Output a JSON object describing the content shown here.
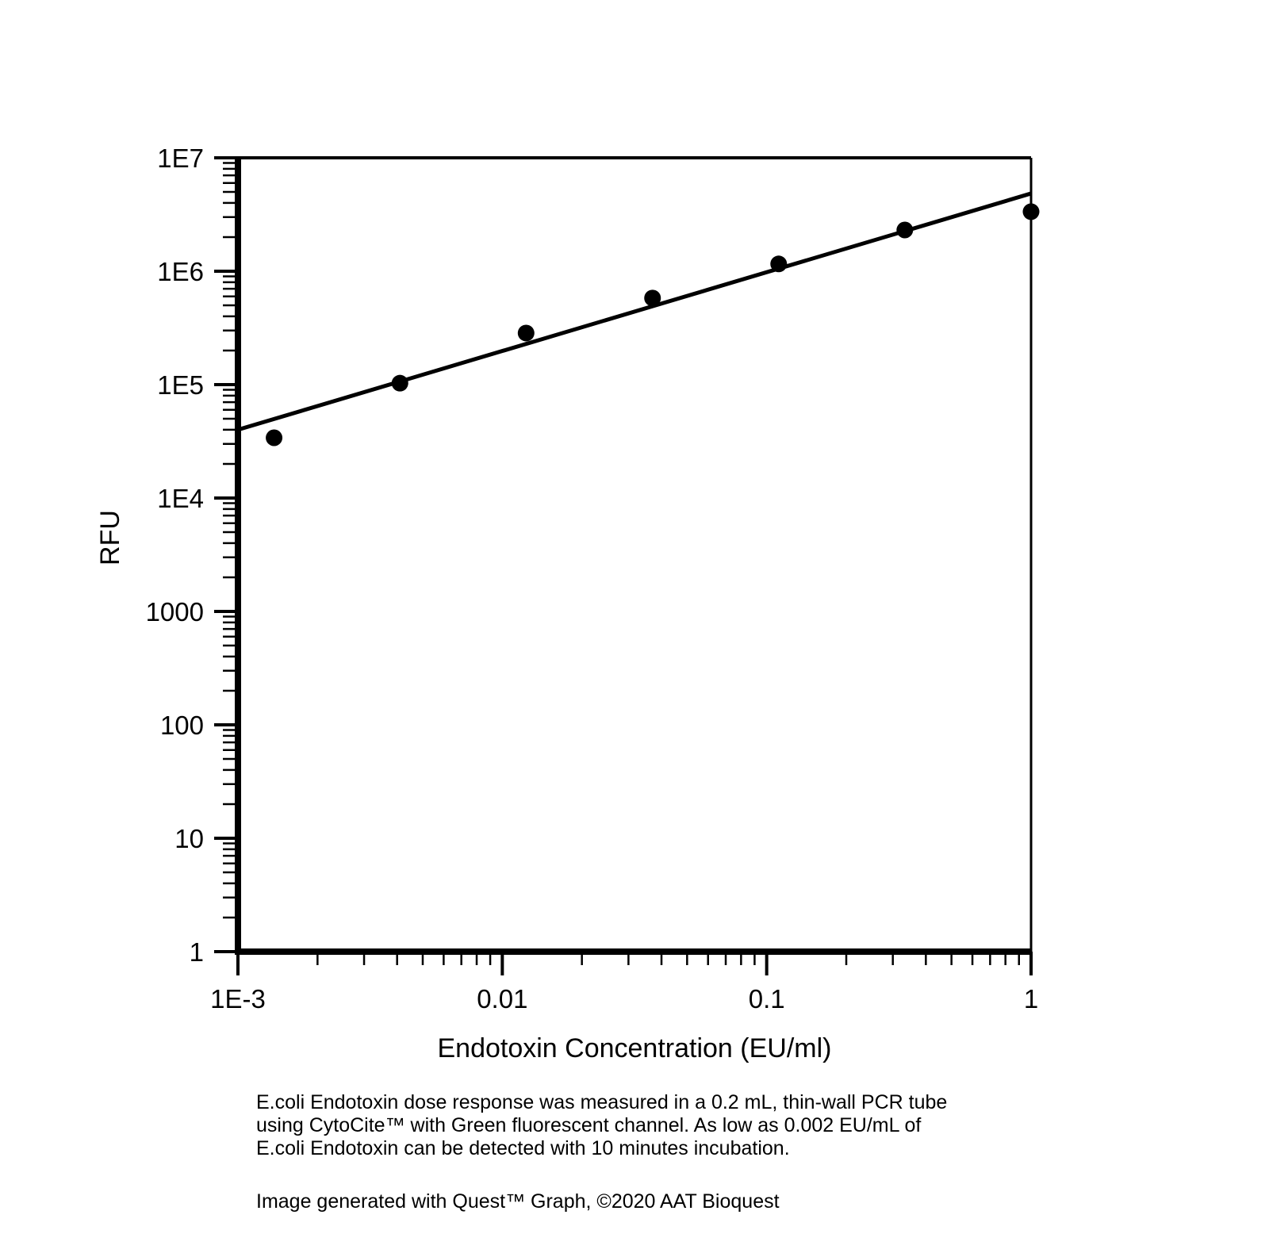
{
  "colors": {
    "fg": "#000000",
    "bg": "#ffffff"
  },
  "chart_data": {
    "type": "scatter",
    "title": "",
    "xlabel": "Endotoxin Concentration (EU/ml)",
    "ylabel": "RFU",
    "x_scale": "log",
    "y_scale": "log",
    "xlim": [
      0.001,
      1
    ],
    "ylim": [
      1,
      10000000
    ],
    "grid": false,
    "legend": false,
    "x_ticks": [
      {
        "value": 0.001,
        "label": "1E-3"
      },
      {
        "value": 0.01,
        "label": "0.01"
      },
      {
        "value": 0.1,
        "label": "0.1"
      },
      {
        "value": 1,
        "label": "1"
      }
    ],
    "y_ticks": [
      {
        "value": 1,
        "label": "1"
      },
      {
        "value": 10,
        "label": "10"
      },
      {
        "value": 100,
        "label": "100"
      },
      {
        "value": 1000,
        "label": "1000"
      },
      {
        "value": 10000,
        "label": "1E4"
      },
      {
        "value": 100000,
        "label": "1E5"
      },
      {
        "value": 1000000,
        "label": "1E6"
      },
      {
        "value": 10000000,
        "label": "1E7"
      }
    ],
    "series": [
      {
        "name": "E.coli Endotoxin dose response",
        "marker": "filled-circle",
        "points": [
          {
            "x": 0.00137,
            "y": 34000
          },
          {
            "x": 0.0041,
            "y": 103000
          },
          {
            "x": 0.0123,
            "y": 285000
          },
          {
            "x": 0.037,
            "y": 580000
          },
          {
            "x": 0.111,
            "y": 1160000
          },
          {
            "x": 0.333,
            "y": 2310000
          },
          {
            "x": 1,
            "y": 3350000
          }
        ]
      }
    ],
    "fit_line": {
      "x1": 0.001,
      "y1": 40000,
      "x2": 1,
      "y2": 4850000
    }
  },
  "caption": {
    "lines": [
      "E.coli Endotoxin dose response was measured in a 0.2 mL, thin-wall PCR tube",
      "using CytoCite™ with Green fluorescent channel. As low as 0.002 EU/mL of",
      "E.coli Endotoxin can be detected with 10 minutes incubation."
    ]
  },
  "footer": {
    "text": "Image generated with Quest™ Graph, ©2020 AAT Bioquest"
  }
}
